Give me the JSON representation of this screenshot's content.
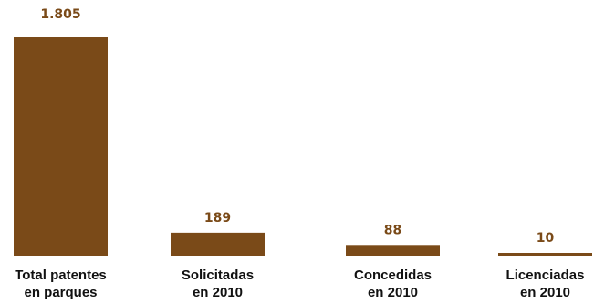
{
  "chart_data": {
    "type": "bar",
    "categories": [
      [
        "Total patentes",
        "en parques"
      ],
      [
        "Solicitadas",
        "en 2010"
      ],
      [
        "Concedidas",
        "en 2010"
      ],
      [
        "Licenciadas",
        "en 2010"
      ]
    ],
    "values": [
      1805,
      189,
      88,
      10
    ],
    "data_labels": [
      "1.805",
      "189",
      "88",
      "10"
    ],
    "ylim": [
      0,
      1805
    ],
    "grid": false,
    "legend": "none",
    "bar_color": "#7a4a18",
    "label_color": "#7a4a18"
  }
}
